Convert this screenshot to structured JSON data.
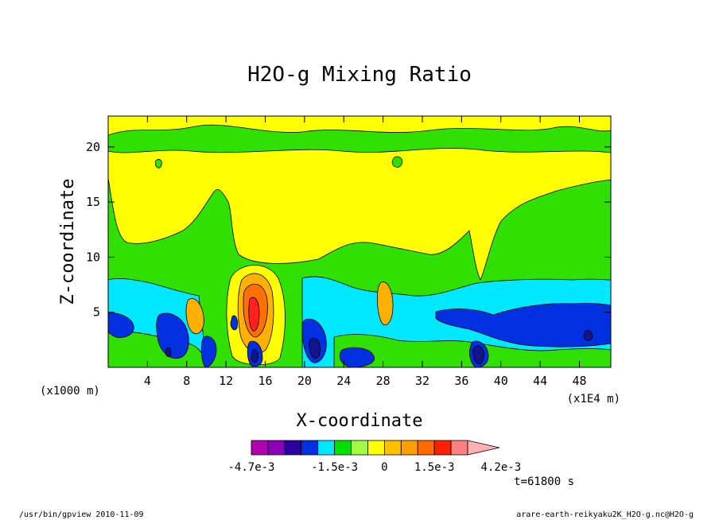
{
  "chart_data": {
    "type": "heatmap",
    "title": "H2O-g Mixing Ratio",
    "xlabel": "X-coordinate",
    "ylabel": "Z-coordinate",
    "x_unit_left": "(x1000 m)",
    "x_unit_right": "(x1E4 m)",
    "xlim": [
      0,
      51.2
    ],
    "ylim": [
      0,
      22.8
    ],
    "x_ticks": [
      4,
      8,
      12,
      16,
      20,
      24,
      28,
      32,
      36,
      40,
      44,
      48
    ],
    "y_ticks": [
      5,
      10,
      15,
      20
    ],
    "x_tick_labels": [
      "4",
      "8",
      "12",
      "16",
      "20",
      "24",
      "28",
      "32",
      "36",
      "40",
      "44",
      "48"
    ],
    "y_tick_labels": [
      "5",
      "10",
      "15",
      "20"
    ],
    "colorbar": {
      "levels": [
        -0.0047,
        -0.0041,
        -0.0035,
        -0.0029,
        -0.0023,
        -0.0015,
        -0.0009,
        -0.0003,
        0,
        0.0003,
        0.0009,
        0.0015,
        0.0021,
        0.0027,
        0.0033,
        0.0042
      ],
      "colors": [
        "#b000b0",
        "#8a00b8",
        "#2a00a0",
        "#0030e0",
        "#00e8ff",
        "#00e000",
        "#a0ff40",
        "#ffff00",
        "#ffc000",
        "#ffa000",
        "#ff6a00",
        "#ff2000",
        "#ff8080",
        "#ffb0b0"
      ],
      "tick_labels": [
        "-4.7e-3",
        "-1.5e-3",
        "0",
        "1.5e-3",
        "4.2e-3"
      ]
    },
    "time_label": "t=61800 s",
    "footer_left": "/usr/bin/gpview  2010-11-09",
    "footer_right": "arare-earth-reikyaku2K_H2O-g.nc@H2O-g"
  },
  "palette": {
    "yellow": "#ffff00",
    "green": "#30e000",
    "cyan": "#00e8ff",
    "blue": "#0030e0",
    "navy": "#14148c",
    "orange": "#ffb000",
    "red": "#ff2020",
    "darkorange": "#ff7000"
  }
}
